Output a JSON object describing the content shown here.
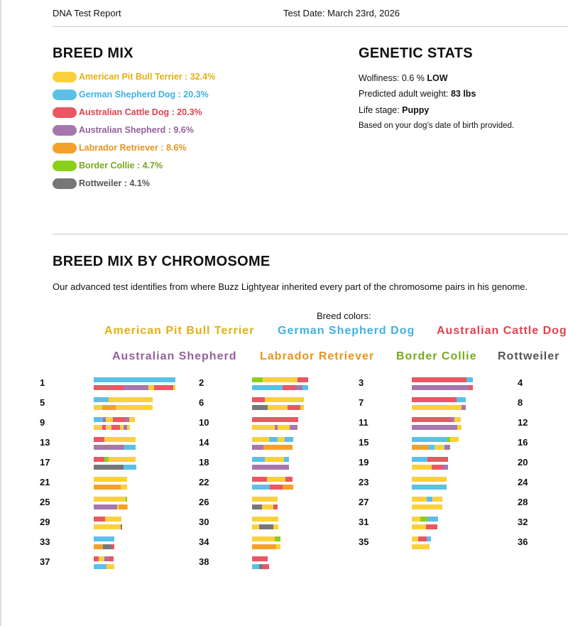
{
  "header": {
    "title": "DNA Test Report",
    "test_date": "Test Date: March 23rd, 2026"
  },
  "breed_mix": {
    "title": "BREED MIX",
    "items": [
      {
        "label": "American Pit Bull Terrier : 32.4%",
        "color": "#fbd03c",
        "text_color": "#e2b012"
      },
      {
        "label": "German Shepherd Dog : 20.3%",
        "color": "#5bc0e8",
        "text_color": "#3fb2e0"
      },
      {
        "label": "Australian Cattle Dog : 20.3%",
        "color": "#ea5662",
        "text_color": "#e2404e"
      },
      {
        "label": "Australian Shepherd : 9.6%",
        "color": "#a776ad",
        "text_color": "#94609c"
      },
      {
        "label": "Labrador Retriever : 8.6%",
        "color": "#f5a02a",
        "text_color": "#e8941c"
      },
      {
        "label": "Border Collie : 4.7%",
        "color": "#8ccf1a",
        "text_color": "#78a81c"
      },
      {
        "label": "Rottweiler : 4.1%",
        "color": "#767779",
        "text_color": "#555555"
      }
    ]
  },
  "genetic_stats": {
    "title": "GENETIC STATS",
    "lines": [
      {
        "label": "Wolfiness: 0.6 %",
        "value": "LOW"
      },
      {
        "label": "Predicted adult weight:",
        "value": "83 lbs"
      },
      {
        "label": "Life stage:",
        "value": "Puppy"
      },
      {
        "label": "Based on your dog’s date of birth provided."
      }
    ]
  },
  "chromosome_section": {
    "title": "BREED MIX BY CHROMOSOME",
    "description": "Our advanced test identifies from where Buzz Lightyear inherited every part of the chromosome pairs in his genome.",
    "legend_title": "Breed colors:",
    "breeds": [
      "American Pit Bull Terrier",
      "German Shepherd Dog",
      "Australian Cattle Dog",
      "Australian Shepherd",
      "Labrador Retriever",
      "Border Collie",
      "Rottweiler"
    ],
    "chromosomes": [
      {
        "label": "1",
        "strands": [
          [
            [
              1,
              115
            ]
          ],
          [
            [
              2,
              42
            ],
            [
              3,
              35
            ],
            [
              0,
              8
            ],
            [
              2,
              27
            ],
            [
              0,
              3
            ]
          ]
        ]
      },
      {
        "label": "2",
        "strands": [
          [
            [
              5,
              15
            ],
            [
              0,
              49
            ],
            [
              2,
              15
            ]
          ],
          [
            [
              1,
              43
            ],
            [
              2,
              18
            ],
            [
              3,
              10
            ],
            [
              1,
              8
            ]
          ]
        ]
      },
      {
        "label": "3",
        "strands": [
          [
            [
              2,
              77
            ],
            [
              1,
              9
            ]
          ],
          [
            [
              3,
              80
            ],
            [
              2,
              6
            ]
          ]
        ]
      },
      {
        "label": "4"
      },
      {
        "label": "5",
        "strands": [
          [
            [
              1,
              21
            ],
            [
              0,
              62
            ]
          ],
          [
            [
              0,
              12
            ],
            [
              4,
              19
            ],
            [
              0,
              52
            ]
          ]
        ]
      },
      {
        "label": "6",
        "strands": [
          [
            [
              2,
              18
            ],
            [
              0,
              55
            ]
          ],
          [
            [
              6,
              22
            ],
            [
              0,
              28
            ],
            [
              2,
              18
            ],
            [
              0,
              5
            ]
          ]
        ]
      },
      {
        "label": "7",
        "strands": [
          [
            [
              2,
              63
            ],
            [
              1,
              13
            ]
          ],
          [
            [
              0,
              70
            ],
            [
              3,
              6
            ]
          ]
        ]
      },
      {
        "label": "8"
      },
      {
        "label": "9",
        "strands": [
          [
            [
              1,
              13
            ],
            [
              3,
              4
            ],
            [
              0,
              10
            ],
            [
              2,
              18
            ],
            [
              3,
              5
            ],
            [
              0,
              8
            ]
          ],
          [
            [
              0,
              12
            ],
            [
              2,
              5
            ],
            [
              0,
              8
            ],
            [
              2,
              12
            ],
            [
              0,
              5
            ],
            [
              3,
              5
            ],
            [
              0,
              4
            ]
          ]
        ]
      },
      {
        "label": "10",
        "strands": [
          [
            [
              2,
              65
            ]
          ],
          [
            [
              0,
              32
            ],
            [
              3,
              4
            ],
            [
              0,
              17
            ],
            [
              3,
              11
            ]
          ]
        ]
      },
      {
        "label": "11",
        "strands": [
          [
            [
              2,
              55
            ],
            [
              3,
              5
            ],
            [
              0,
              9
            ]
          ],
          [
            [
              3,
              64
            ],
            [
              0,
              6
            ]
          ]
        ]
      },
      {
        "label": "12"
      },
      {
        "label": "13",
        "strands": [
          [
            [
              2,
              15
            ],
            [
              0,
              44
            ]
          ],
          [
            [
              3,
              43
            ],
            [
              1,
              16
            ]
          ]
        ]
      },
      {
        "label": "14",
        "strands": [
          [
            [
              0,
              24
            ],
            [
              1,
              12
            ],
            [
              0,
              10
            ],
            [
              1,
              12
            ]
          ],
          [
            [
              3,
              16
            ],
            [
              4,
              41
            ]
          ]
        ]
      },
      {
        "label": "15",
        "strands": [
          [
            [
              1,
              50
            ],
            [
              5,
              4
            ],
            [
              0,
              12
            ]
          ],
          [
            [
              4,
              24
            ],
            [
              1,
              8
            ],
            [
              0,
              14
            ],
            [
              3,
              8
            ]
          ]
        ]
      },
      {
        "label": "16"
      },
      {
        "label": "17",
        "strands": [
          [
            [
              2,
              15
            ],
            [
              5,
              6
            ],
            [
              0,
              38
            ]
          ],
          [
            [
              6,
              42
            ],
            [
              1,
              18
            ]
          ]
        ]
      },
      {
        "label": "18",
        "strands": [
          [
            [
              1,
              18
            ],
            [
              0,
              27
            ],
            [
              1,
              7
            ]
          ],
          [
            [
              3,
              52
            ]
          ]
        ]
      },
      {
        "label": "19",
        "strands": [
          [
            [
              1,
              22
            ],
            [
              2,
              29
            ]
          ],
          [
            [
              0,
              28
            ],
            [
              2,
              16
            ],
            [
              3,
              7
            ]
          ]
        ]
      },
      {
        "label": "20"
      },
      {
        "label": "21",
        "strands": [
          [
            [
              0,
              47
            ]
          ],
          [
            [
              4,
              38
            ],
            [
              0,
              9
            ]
          ]
        ]
      },
      {
        "label": "22",
        "strands": [
          [
            [
              2,
              21
            ],
            [
              0,
              26
            ],
            [
              2,
              10
            ]
          ],
          [
            [
              1,
              25
            ],
            [
              2,
              18
            ],
            [
              4,
              15
            ]
          ]
        ]
      },
      {
        "label": "23",
        "strands": [
          [
            [
              0,
              49
            ]
          ],
          [
            [
              1,
              49
            ]
          ]
        ]
      },
      {
        "label": "24"
      },
      {
        "label": "25",
        "strands": [
          [
            [
              0,
              45
            ],
            [
              5,
              2
            ]
          ],
          [
            [
              3,
              33
            ],
            [
              0,
              2
            ],
            [
              4,
              12
            ],
            [
              0,
              1
            ]
          ]
        ]
      },
      {
        "label": "26",
        "strands": [
          [
            [
              0,
              36
            ]
          ],
          [
            [
              6,
              14
            ],
            [
              0,
              16
            ],
            [
              2,
              6
            ]
          ]
        ]
      },
      {
        "label": "27",
        "strands": [
          [
            [
              0,
              21
            ],
            [
              1,
              8
            ],
            [
              0,
              14
            ]
          ],
          [
            [
              0,
              43
            ]
          ]
        ]
      },
      {
        "label": "28"
      },
      {
        "label": "29",
        "strands": [
          [
            [
              2,
              16
            ],
            [
              0,
              23
            ]
          ],
          [
            [
              0,
              38
            ],
            [
              6,
              2
            ]
          ]
        ]
      },
      {
        "label": "30",
        "strands": [
          [
            [
              0,
              37
            ]
          ],
          [
            [
              0,
              10
            ],
            [
              6,
              20
            ],
            [
              0,
              7
            ]
          ]
        ]
      },
      {
        "label": "31",
        "strands": [
          [
            [
              0,
              12
            ],
            [
              5,
              10
            ],
            [
              1,
              15
            ]
          ],
          [
            [
              0,
              20
            ],
            [
              2,
              16
            ]
          ]
        ]
      },
      {
        "label": "32"
      },
      {
        "label": "33",
        "strands": [
          [
            [
              1,
              29
            ]
          ],
          [
            [
              4,
              13
            ],
            [
              6,
              12
            ],
            [
              2,
              4
            ]
          ]
        ]
      },
      {
        "label": "34",
        "strands": [
          [
            [
              0,
              32
            ],
            [
              5,
              8
            ]
          ],
          [
            [
              4,
              34
            ],
            [
              0,
              6
            ]
          ]
        ]
      },
      {
        "label": "35",
        "strands": [
          [
            [
              0,
              9
            ],
            [
              2,
              12
            ],
            [
              1,
              6
            ]
          ],
          [
            [
              0,
              25
            ]
          ]
        ]
      },
      {
        "label": "36"
      },
      {
        "label": "37",
        "strands": [
          [
            [
              2,
              7
            ],
            [
              0,
              8
            ],
            [
              3,
              6
            ],
            [
              2,
              7
            ]
          ],
          [
            [
              1,
              18
            ],
            [
              0,
              11
            ]
          ]
        ]
      },
      {
        "label": "38",
        "strands": [
          [
            [
              2,
              22
            ]
          ],
          [
            [
              1,
              10
            ],
            [
              6,
              5
            ],
            [
              2,
              9
            ]
          ]
        ]
      }
    ]
  }
}
